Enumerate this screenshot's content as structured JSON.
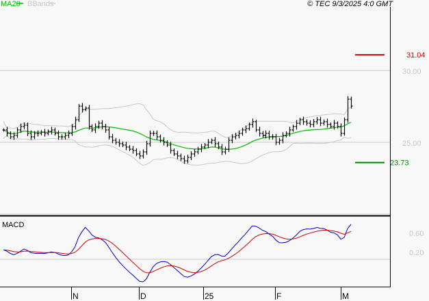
{
  "header": {
    "legend_ma": "MA20",
    "legend_bbands": "BBands",
    "copyright": "© TEC 9/3/2025 4:0 GMT"
  },
  "colors": {
    "ma": "#00bb00",
    "bbands": "#c8c8c8",
    "bars": "#000000",
    "macd": "#0000cc",
    "signal": "#cc0000",
    "high_marker": "#cc0000",
    "low_marker": "#008800"
  },
  "chart_data": {
    "type": "bar",
    "title": "",
    "price_axis": {
      "ticks": [
        {
          "value": 30.0,
          "label": "30.00"
        },
        {
          "value": 25.0,
          "label": "25.00"
        }
      ]
    },
    "markers": {
      "high": {
        "value": 31.04,
        "label": "31.04"
      },
      "low": {
        "value": 23.73,
        "label": "23.73"
      }
    },
    "x_ticks": [
      "N",
      "D",
      "25",
      "F",
      "M"
    ],
    "closes": [
      25.86,
      25.62,
      25.38,
      25.48,
      25.86,
      26.1,
      26.19,
      25.62,
      25.38,
      25.62,
      25.62,
      25.71,
      25.62,
      25.76,
      25.86,
      25.62,
      25.38,
      25.38,
      25.48,
      25.62,
      26.1,
      26.57,
      27.52,
      27.29,
      27.38,
      26.1,
      25.86,
      26.1,
      26.33,
      26.1,
      25.86,
      25.38,
      25.14,
      25.0,
      24.9,
      24.81,
      24.67,
      24.52,
      24.43,
      24.19,
      24.05,
      24.33,
      24.9,
      25.62,
      25.62,
      25.38,
      25.14,
      25.0,
      24.81,
      24.43,
      24.19,
      24.05,
      23.86,
      23.71,
      23.95,
      24.19,
      24.33,
      24.52,
      24.67,
      24.81,
      25.0,
      25.14,
      24.9,
      24.67,
      24.33,
      24.52,
      25.14,
      25.38,
      25.48,
      25.62,
      25.86,
      25.95,
      26.24,
      26.43,
      25.86,
      25.62,
      25.48,
      25.62,
      25.38,
      25.38,
      25.0,
      25.14,
      25.48,
      25.62,
      25.86,
      26.1,
      26.33,
      26.57,
      26.43,
      26.33,
      26.24,
      26.43,
      26.57,
      26.33,
      26.43,
      26.24,
      26.1,
      26.33,
      26.1,
      25.62,
      26.57,
      28.0,
      27.52
    ],
    "macd_panel": {
      "label": "MACD",
      "ticks": [
        {
          "value": 0.6,
          "label": "0.60"
        },
        {
          "value": 0.2,
          "label": "0.20"
        }
      ],
      "series": [
        "MACD",
        "Signal"
      ]
    }
  }
}
